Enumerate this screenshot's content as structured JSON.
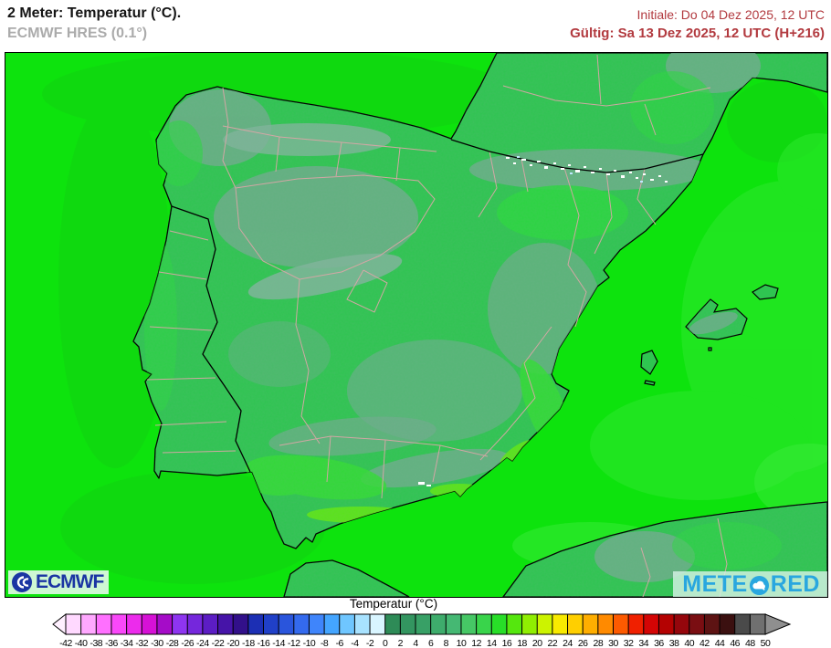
{
  "header": {
    "title": "2 Meter: Temperatur (°C).",
    "subtitle": "ECMWF HRES (0.1°)",
    "init_label": "Initiale: Do 04 Dez 2025, 12 UTC",
    "valid_label": "Gültig: Sa 13 Dez 2025, 12 UTC (H+216)",
    "accent_color": "#B23A3F",
    "subtitle_color": "#ABABAB"
  },
  "map": {
    "region": "Iberian Peninsula",
    "model": "ECMWF HRES",
    "variable": "2 m temperature",
    "logos": {
      "ecmwf_text": "ECMWF",
      "meteored_pre": "METE",
      "meteored_post": "RED"
    },
    "colors": {
      "ocean": "#0DE30D",
      "ocean_dull": "#12D212",
      "ocean_light": "#2BE72B",
      "ocean_bright": "#3BEB3B",
      "land": "#2FC551",
      "land_bright": "#2BD83F",
      "land_valley": "#33DD35",
      "land_warm": "#5FE714",
      "plateau": "#6FAD8C",
      "ridge": "#7FB59A",
      "mancha": "#63B183",
      "coast": "#000000",
      "admin": "#D8A6A6",
      "snow": "#FFFFFF",
      "snow_blue": "#BFE8FF",
      "ecmwf": "#1A35A3",
      "meteored": "#29A7DF",
      "accent": "#B23A3F",
      "subtitle": "#ABABAB"
    }
  },
  "legend": {
    "title": "Temperatur (°C)",
    "unit": "°C",
    "ticks": [
      -42,
      -40,
      -38,
      -36,
      -34,
      -32,
      -30,
      -28,
      -26,
      -24,
      -22,
      -20,
      -18,
      -16,
      -14,
      -12,
      -10,
      -8,
      -6,
      -4,
      -2,
      0,
      2,
      4,
      6,
      8,
      10,
      12,
      14,
      16,
      18,
      20,
      22,
      24,
      26,
      28,
      30,
      32,
      34,
      36,
      38,
      40,
      42,
      44,
      46,
      48,
      50
    ],
    "cell_colors": [
      "#FFD9FF",
      "#FFA8FF",
      "#FF70FF",
      "#F948F9",
      "#EC2BEC",
      "#D611D6",
      "#A50CC8",
      "#8E35F0",
      "#7527DC",
      "#5C1DC4",
      "#4614A8",
      "#32108A",
      "#1C2FB4",
      "#2040C8",
      "#2A55DC",
      "#346AEE",
      "#3F85FB",
      "#44A5FF",
      "#6FC6FF",
      "#A8E2FF",
      "#D9F5FF",
      "#2E8B57",
      "#339560",
      "#38A066",
      "#3EAC6C",
      "#45B873",
      "#46C765",
      "#39D44B",
      "#28DE28",
      "#55E70E",
      "#90EE02",
      "#CCF300",
      "#F8EA00",
      "#FFCF00",
      "#FFAE00",
      "#FF8A00",
      "#FD5A00",
      "#F02000",
      "#D40505",
      "#B40202",
      "#95060C",
      "#7A0E12",
      "#5D1313",
      "#3B1010",
      "#4A4A4A",
      "#707070"
    ],
    "left_arrow_color": "#FFF0FF",
    "right_arrow_color": "#8F8F8F"
  }
}
